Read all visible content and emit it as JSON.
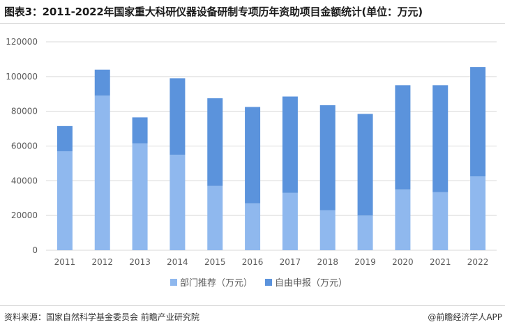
{
  "header": {
    "title": "图表3：2011-2022年国家重大科研仪器设备研制专项历年资助项目金额统计(单位：万元)"
  },
  "footer": {
    "source": "资料来源：国家自然科学基金委员会 前瞻产业研究院",
    "brand": "@前瞻经济学人APP"
  },
  "colors": {
    "series1": "#8fb8ee",
    "series2": "#5b93dc",
    "grid": "#d9d9d9",
    "axis_text": "#595959"
  },
  "chart_data": {
    "type": "bar",
    "stacked": true,
    "categories": [
      "2011",
      "2012",
      "2013",
      "2014",
      "2015",
      "2016",
      "2017",
      "2018",
      "2019",
      "2020",
      "2021",
      "2022"
    ],
    "series": [
      {
        "name": "部门推荐（万元）",
        "values": [
          57000,
          89000,
          61500,
          55000,
          37000,
          27000,
          33000,
          23000,
          20000,
          35000,
          33500,
          42500
        ]
      },
      {
        "name": "自由申报（万元）",
        "values": [
          14500,
          15000,
          15000,
          44000,
          50500,
          55500,
          55500,
          60500,
          58500,
          60000,
          61500,
          63000
        ]
      }
    ],
    "yticks": [
      0,
      20000,
      40000,
      60000,
      80000,
      100000,
      120000
    ],
    "ylim": [
      0,
      120000
    ],
    "grid": true,
    "legend_position": "bottom"
  }
}
